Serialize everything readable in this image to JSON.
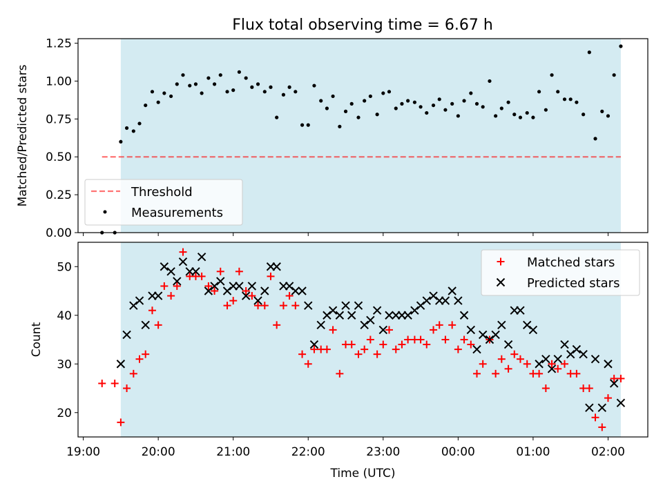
{
  "title": "Flux total observing time = 6.67 h",
  "colors": {
    "span": "#add8e6",
    "threshold": "#ff0000",
    "matched": "#ff0000",
    "predicted": "#000000"
  },
  "chart_data": [
    {
      "type": "scatter",
      "panel": "top",
      "title": "Flux total observing time = 6.67 h",
      "ylabel": "Matched/Predicted stars",
      "xlabel": "",
      "ylim": [
        0,
        1.28
      ],
      "xlim_hours": [
        18.93,
        26.53
      ],
      "yticks": [
        0,
        0.25,
        0.5,
        0.75,
        1.0,
        1.25
      ],
      "ytick_labels": [
        "0.00",
        "0.25",
        "0.50",
        "0.75",
        "1.00",
        "1.25"
      ],
      "observing_span_hours": [
        19.5,
        26.17
      ],
      "threshold": {
        "label": "Threshold",
        "value": 0.5,
        "x_range_hours": [
          19.25,
          26.17
        ],
        "style": "dashed"
      },
      "legend": {
        "position": "lower-left",
        "entries": [
          "Threshold",
          "Measurements"
        ]
      },
      "series": [
        {
          "name": "Measurements",
          "marker": "dot",
          "points": [
            [
              19.25,
              0.0
            ],
            [
              19.42,
              0.0
            ],
            [
              19.5,
              0.6
            ],
            [
              19.58,
              0.69
            ],
            [
              19.67,
              0.67
            ],
            [
              19.75,
              0.72
            ],
            [
              19.83,
              0.84
            ],
            [
              19.92,
              0.93
            ],
            [
              20.0,
              0.86
            ],
            [
              20.08,
              0.92
            ],
            [
              20.17,
              0.9
            ],
            [
              20.25,
              0.98
            ],
            [
              20.33,
              1.04
            ],
            [
              20.42,
              0.97
            ],
            [
              20.5,
              0.98
            ],
            [
              20.58,
              0.92
            ],
            [
              20.67,
              1.02
            ],
            [
              20.75,
              0.98
            ],
            [
              20.83,
              1.04
            ],
            [
              20.92,
              0.93
            ],
            [
              21.0,
              0.94
            ],
            [
              21.08,
              1.06
            ],
            [
              21.17,
              1.02
            ],
            [
              21.25,
              0.96
            ],
            [
              21.33,
              0.98
            ],
            [
              21.42,
              0.93
            ],
            [
              21.5,
              0.96
            ],
            [
              21.58,
              0.76
            ],
            [
              21.67,
              0.91
            ],
            [
              21.75,
              0.96
            ],
            [
              21.83,
              0.93
            ],
            [
              21.92,
              0.71
            ],
            [
              22.0,
              0.71
            ],
            [
              22.08,
              0.97
            ],
            [
              22.17,
              0.87
            ],
            [
              22.25,
              0.82
            ],
            [
              22.33,
              0.9
            ],
            [
              22.42,
              0.7
            ],
            [
              22.5,
              0.8
            ],
            [
              22.58,
              0.85
            ],
            [
              22.67,
              0.76
            ],
            [
              22.75,
              0.87
            ],
            [
              22.83,
              0.9
            ],
            [
              22.92,
              0.78
            ],
            [
              23.0,
              0.92
            ],
            [
              23.08,
              0.93
            ],
            [
              23.17,
              0.82
            ],
            [
              23.25,
              0.85
            ],
            [
              23.33,
              0.87
            ],
            [
              23.42,
              0.86
            ],
            [
              23.5,
              0.83
            ],
            [
              23.58,
              0.79
            ],
            [
              23.67,
              0.84
            ],
            [
              23.75,
              0.88
            ],
            [
              23.83,
              0.81
            ],
            [
              23.92,
              0.85
            ],
            [
              24.0,
              0.77
            ],
            [
              24.08,
              0.87
            ],
            [
              24.17,
              0.92
            ],
            [
              24.25,
              0.85
            ],
            [
              24.33,
              0.83
            ],
            [
              24.42,
              1.0
            ],
            [
              24.5,
              0.77
            ],
            [
              24.58,
              0.82
            ],
            [
              24.67,
              0.86
            ],
            [
              24.75,
              0.78
            ],
            [
              24.83,
              0.76
            ],
            [
              24.92,
              0.79
            ],
            [
              25.0,
              0.76
            ],
            [
              25.08,
              0.93
            ],
            [
              25.17,
              0.81
            ],
            [
              25.25,
              1.04
            ],
            [
              25.33,
              0.93
            ],
            [
              25.42,
              0.88
            ],
            [
              25.5,
              0.88
            ],
            [
              25.58,
              0.86
            ],
            [
              25.67,
              0.78
            ],
            [
              25.75,
              1.19
            ],
            [
              25.83,
              0.62
            ],
            [
              25.92,
              0.8
            ],
            [
              26.0,
              0.77
            ],
            [
              26.08,
              1.04
            ],
            [
              26.17,
              1.23
            ]
          ]
        }
      ]
    },
    {
      "type": "scatter",
      "panel": "bottom",
      "ylabel": "Count",
      "xlabel": "Time (UTC)",
      "ylim": [
        15,
        55
      ],
      "xlim_hours": [
        18.93,
        26.53
      ],
      "yticks": [
        20,
        30,
        40,
        50
      ],
      "ytick_labels": [
        "20",
        "30",
        "40",
        "50"
      ],
      "xticks_hours": [
        19,
        20,
        21,
        22,
        23,
        24,
        25,
        26
      ],
      "xtick_labels": [
        "19:00",
        "20:00",
        "21:00",
        "22:00",
        "23:00",
        "00:00",
        "01:00",
        "02:00"
      ],
      "observing_span_hours": [
        19.5,
        26.17
      ],
      "legend": {
        "position": "top-right",
        "entries": [
          "Matched stars",
          "Predicted stars"
        ]
      },
      "series": [
        {
          "name": "Matched stars",
          "marker": "plus",
          "points": [
            [
              19.25,
              26
            ],
            [
              19.42,
              26
            ],
            [
              19.5,
              18
            ],
            [
              19.58,
              25
            ],
            [
              19.67,
              28
            ],
            [
              19.75,
              31
            ],
            [
              19.83,
              32
            ],
            [
              19.92,
              41
            ],
            [
              20.0,
              38
            ],
            [
              20.08,
              46
            ],
            [
              20.17,
              44
            ],
            [
              20.25,
              46
            ],
            [
              20.33,
              53
            ],
            [
              20.42,
              48
            ],
            [
              20.5,
              48
            ],
            [
              20.58,
              48
            ],
            [
              20.67,
              46
            ],
            [
              20.75,
              45
            ],
            [
              20.83,
              49
            ],
            [
              20.92,
              42
            ],
            [
              21.0,
              43
            ],
            [
              21.08,
              49
            ],
            [
              21.17,
              45
            ],
            [
              21.25,
              44
            ],
            [
              21.33,
              42
            ],
            [
              21.42,
              42
            ],
            [
              21.5,
              48
            ],
            [
              21.58,
              38
            ],
            [
              21.67,
              42
            ],
            [
              21.75,
              44
            ],
            [
              21.83,
              42
            ],
            [
              21.92,
              32
            ],
            [
              22.0,
              30
            ],
            [
              22.08,
              33
            ],
            [
              22.17,
              33
            ],
            [
              22.25,
              33
            ],
            [
              22.33,
              37
            ],
            [
              22.42,
              28
            ],
            [
              22.5,
              34
            ],
            [
              22.58,
              34
            ],
            [
              22.67,
              32
            ],
            [
              22.75,
              33
            ],
            [
              22.83,
              35
            ],
            [
              22.92,
              32
            ],
            [
              23.0,
              34
            ],
            [
              23.08,
              37
            ],
            [
              23.17,
              33
            ],
            [
              23.25,
              34
            ],
            [
              23.33,
              35
            ],
            [
              23.42,
              35
            ],
            [
              23.5,
              35
            ],
            [
              23.58,
              34
            ],
            [
              23.67,
              37
            ],
            [
              23.75,
              38
            ],
            [
              23.83,
              35
            ],
            [
              23.92,
              38
            ],
            [
              24.0,
              33
            ],
            [
              24.08,
              35
            ],
            [
              24.17,
              34
            ],
            [
              24.25,
              28
            ],
            [
              24.33,
              30
            ],
            [
              24.42,
              35
            ],
            [
              24.5,
              28
            ],
            [
              24.58,
              31
            ],
            [
              24.67,
              29
            ],
            [
              24.75,
              32
            ],
            [
              24.83,
              31
            ],
            [
              24.92,
              30
            ],
            [
              25.0,
              28
            ],
            [
              25.08,
              28
            ],
            [
              25.17,
              25
            ],
            [
              25.25,
              30
            ],
            [
              25.33,
              29
            ],
            [
              25.42,
              30
            ],
            [
              25.5,
              28
            ],
            [
              25.58,
              28
            ],
            [
              25.67,
              25
            ],
            [
              25.75,
              25
            ],
            [
              25.83,
              19
            ],
            [
              25.92,
              17
            ],
            [
              26.0,
              23
            ],
            [
              26.08,
              27
            ],
            [
              26.17,
              27
            ]
          ]
        },
        {
          "name": "Predicted stars",
          "marker": "x",
          "points": [
            [
              19.5,
              30
            ],
            [
              19.58,
              36
            ],
            [
              19.67,
              42
            ],
            [
              19.75,
              43
            ],
            [
              19.83,
              38
            ],
            [
              19.92,
              44
            ],
            [
              20.0,
              44
            ],
            [
              20.08,
              50
            ],
            [
              20.17,
              49
            ],
            [
              20.25,
              47
            ],
            [
              20.33,
              51
            ],
            [
              20.42,
              49
            ],
            [
              20.5,
              49
            ],
            [
              20.58,
              52
            ],
            [
              20.67,
              45
            ],
            [
              20.75,
              46
            ],
            [
              20.83,
              47
            ],
            [
              20.92,
              45
            ],
            [
              21.0,
              46
            ],
            [
              21.08,
              46
            ],
            [
              21.17,
              44
            ],
            [
              21.25,
              46
            ],
            [
              21.33,
              43
            ],
            [
              21.42,
              45
            ],
            [
              21.5,
              50
            ],
            [
              21.58,
              50
            ],
            [
              21.67,
              46
            ],
            [
              21.75,
              46
            ],
            [
              21.83,
              45
            ],
            [
              21.92,
              45
            ],
            [
              22.0,
              42
            ],
            [
              22.08,
              34
            ],
            [
              22.17,
              38
            ],
            [
              22.25,
              40
            ],
            [
              22.33,
              41
            ],
            [
              22.42,
              40
            ],
            [
              22.5,
              42
            ],
            [
              22.58,
              40
            ],
            [
              22.67,
              42
            ],
            [
              22.75,
              38
            ],
            [
              22.83,
              39
            ],
            [
              22.92,
              41
            ],
            [
              23.0,
              37
            ],
            [
              23.08,
              40
            ],
            [
              23.17,
              40
            ],
            [
              23.25,
              40
            ],
            [
              23.33,
              40
            ],
            [
              23.42,
              41
            ],
            [
              23.5,
              42
            ],
            [
              23.58,
              43
            ],
            [
              23.67,
              44
            ],
            [
              23.75,
              43
            ],
            [
              23.83,
              43
            ],
            [
              23.92,
              45
            ],
            [
              24.0,
              43
            ],
            [
              24.08,
              40
            ],
            [
              24.17,
              37
            ],
            [
              24.25,
              33
            ],
            [
              24.33,
              36
            ],
            [
              24.42,
              35
            ],
            [
              24.5,
              36
            ],
            [
              24.58,
              38
            ],
            [
              24.67,
              34
            ],
            [
              24.75,
              41
            ],
            [
              24.83,
              41
            ],
            [
              24.92,
              38
            ],
            [
              25.0,
              37
            ],
            [
              25.08,
              30
            ],
            [
              25.17,
              31
            ],
            [
              25.25,
              29
            ],
            [
              25.33,
              31
            ],
            [
              25.42,
              34
            ],
            [
              25.5,
              32
            ],
            [
              25.58,
              33
            ],
            [
              25.67,
              32
            ],
            [
              25.75,
              21
            ],
            [
              25.83,
              31
            ],
            [
              25.92,
              21
            ],
            [
              26.0,
              30
            ],
            [
              26.08,
              26
            ],
            [
              26.17,
              22
            ]
          ]
        }
      ]
    }
  ]
}
